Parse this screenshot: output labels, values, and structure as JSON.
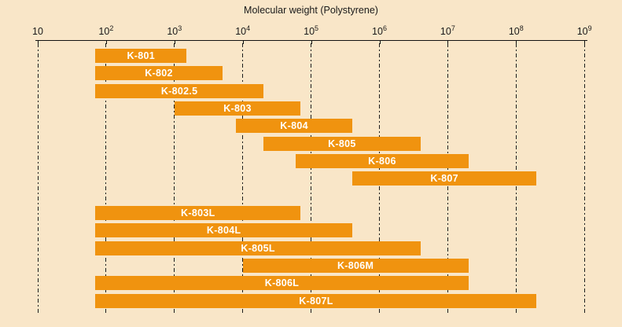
{
  "colors": {
    "background": "#f9e6c8",
    "bar": "#f0930f",
    "bar_label": "#ffffff",
    "axis": "#111111",
    "grid": "#1c1c1c",
    "text": "#1a1a1a"
  },
  "chart_data": {
    "type": "bar",
    "subtype": "horizontal-range-bars",
    "title": "Molecular weight (Polystyrene)",
    "xscale": "log",
    "xlim": [
      10,
      1000000000
    ],
    "grid": "vertical-dash-dot",
    "ticks": [
      {
        "value": 10,
        "base": "10",
        "exp": ""
      },
      {
        "value": 100,
        "base": "10",
        "exp": "2"
      },
      {
        "value": 1000,
        "base": "10",
        "exp": "3"
      },
      {
        "value": 10000,
        "base": "10",
        "exp": "4"
      },
      {
        "value": 100000,
        "base": "10",
        "exp": "5"
      },
      {
        "value": 1000000,
        "base": "10",
        "exp": "6"
      },
      {
        "value": 10000000,
        "base": "10",
        "exp": "7"
      },
      {
        "value": 100000000,
        "base": "10",
        "exp": "8"
      },
      {
        "value": 1000000000,
        "base": "10",
        "exp": "9"
      }
    ],
    "bars": [
      {
        "label": "K-801",
        "group": 0,
        "from": 70,
        "to": 1500
      },
      {
        "label": "K-802",
        "group": 0,
        "from": 70,
        "to": 5000
      },
      {
        "label": "K-802.5",
        "group": 0,
        "from": 70,
        "to": 20000
      },
      {
        "label": "K-803",
        "group": 0,
        "from": 1000,
        "to": 70000
      },
      {
        "label": "K-804",
        "group": 0,
        "from": 8000,
        "to": 400000
      },
      {
        "label": "K-805",
        "group": 0,
        "from": 20000,
        "to": 4000000
      },
      {
        "label": "K-806",
        "group": 0,
        "from": 60000,
        "to": 20000000
      },
      {
        "label": "K-807",
        "group": 0,
        "from": 400000,
        "to": 200000000
      },
      {
        "label": "K-803L",
        "group": 1,
        "from": 70,
        "to": 70000
      },
      {
        "label": "K-804L",
        "group": 1,
        "from": 70,
        "to": 400000
      },
      {
        "label": "K-805L",
        "group": 1,
        "from": 70,
        "to": 4000000
      },
      {
        "label": "K-806M",
        "group": 1,
        "from": 10000,
        "to": 20000000
      },
      {
        "label": "K-806L",
        "group": 1,
        "from": 70,
        "to": 20000000
      },
      {
        "label": "K-807L",
        "group": 1,
        "from": 70,
        "to": 200000000
      }
    ]
  }
}
